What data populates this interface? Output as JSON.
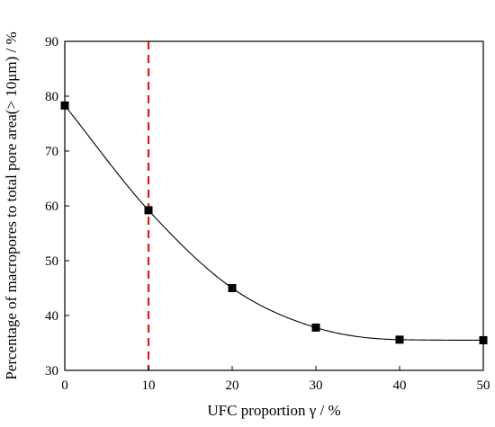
{
  "chart_data": {
    "type": "line",
    "xlabel": "UFC proportion γ / %",
    "ylabel": "Percentage of macropores to total pore area(> 10μm) / %",
    "xlim": [
      0,
      50
    ],
    "ylim": [
      30,
      90
    ],
    "x_ticks": [
      "0",
      "10",
      "20",
      "30",
      "40",
      "50"
    ],
    "y_ticks": [
      "30",
      "40",
      "50",
      "60",
      "70",
      "80",
      "90"
    ],
    "grid": false,
    "series": [
      {
        "x": [
          0,
          10,
          20,
          30,
          40,
          50
        ],
        "values": [
          78.3,
          59.2,
          45.0,
          37.8,
          35.6,
          35.5
        ],
        "marker": "square",
        "color": "#000000"
      }
    ],
    "reference_line": {
      "x": 10,
      "color": "#e01a1a",
      "style": "dashed"
    }
  }
}
